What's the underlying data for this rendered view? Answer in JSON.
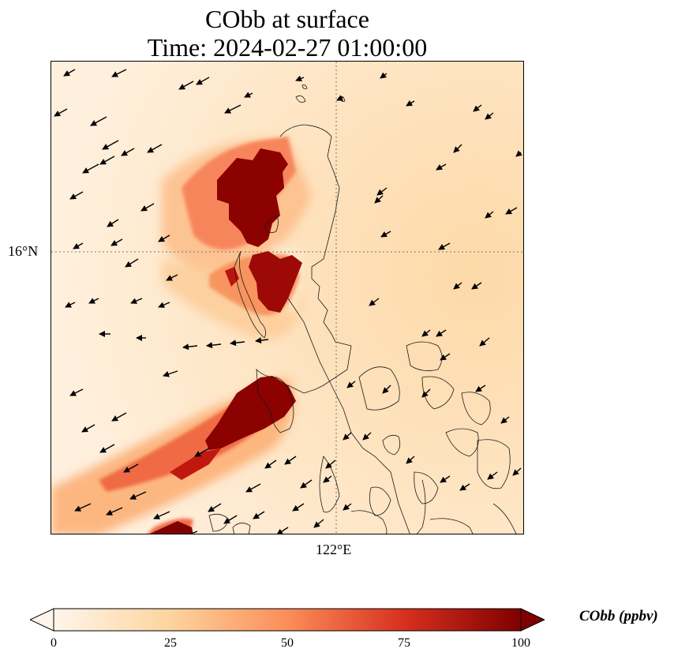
{
  "title": {
    "line1": "CObb at surface",
    "line2": "Time: 2024-02-27 01:00:00"
  },
  "map": {
    "type": "filled-contour field with wind vectors over coastline",
    "field": "CObb",
    "gridlines": "dotted",
    "lat_gridline_label": "16°N",
    "lon_gridline_label": "122°E",
    "background_level_ppbv": 15,
    "plumes": [
      {
        "name": "northern plume core",
        "peak_ppbv": 100
      },
      {
        "name": "central plume",
        "peak_ppbv": 100
      },
      {
        "name": "southern plume",
        "peak_ppbv": 100
      },
      {
        "name": "south-west plume edge",
        "peak_ppbv": 100
      }
    ],
    "wind_direction": "north-east to south-west (pointing west-southwest)"
  },
  "colorbar": {
    "label": "CObb (ppbv)",
    "ticks": [
      "0",
      "25",
      "50",
      "75",
      "100"
    ],
    "range": [
      0,
      100
    ],
    "extend": "both",
    "colormap": [
      "#fff5eb",
      "#fdd49e",
      "#fc8d59",
      "#d7301f",
      "#7f0000"
    ]
  }
}
